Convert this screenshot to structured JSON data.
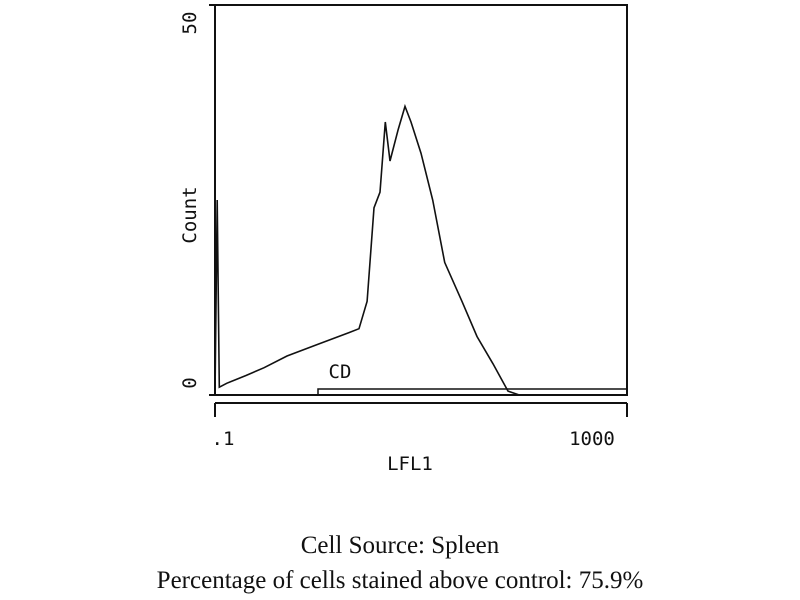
{
  "chart_data": {
    "type": "line",
    "x": [
      0.1,
      0.105,
      0.11,
      0.13,
      0.2,
      0.3,
      0.5,
      1,
      2,
      2.5,
      3,
      3.5,
      4,
      4.5,
      5,
      6,
      7,
      8,
      10,
      13,
      17,
      25,
      35,
      50,
      70,
      90,
      1000
    ],
    "values": [
      0,
      25,
      1,
      1.5,
      2.5,
      3.5,
      5,
      6.5,
      8,
      8.5,
      12,
      24,
      26,
      35,
      30,
      34,
      37,
      35,
      31,
      25,
      17,
      12,
      7.5,
      4,
      0.5,
      0,
      0
    ],
    "color": "#111111",
    "x_label": "LFL1",
    "y_label": "Count",
    "xlim": [
      0.1,
      1000
    ],
    "xticks": [
      {
        "value": 0.1,
        "label": ".1"
      },
      1000
    ],
    "x_scale": "log",
    "ylim": [
      0,
      50
    ],
    "yticks": [
      0,
      50
    ],
    "gate": {
      "label": "CD",
      "range": [
        1,
        1000
      ]
    },
    "captions": [
      "Cell Source:  Spleen",
      "Percentage of cells stained above control:  75.9%"
    ]
  }
}
